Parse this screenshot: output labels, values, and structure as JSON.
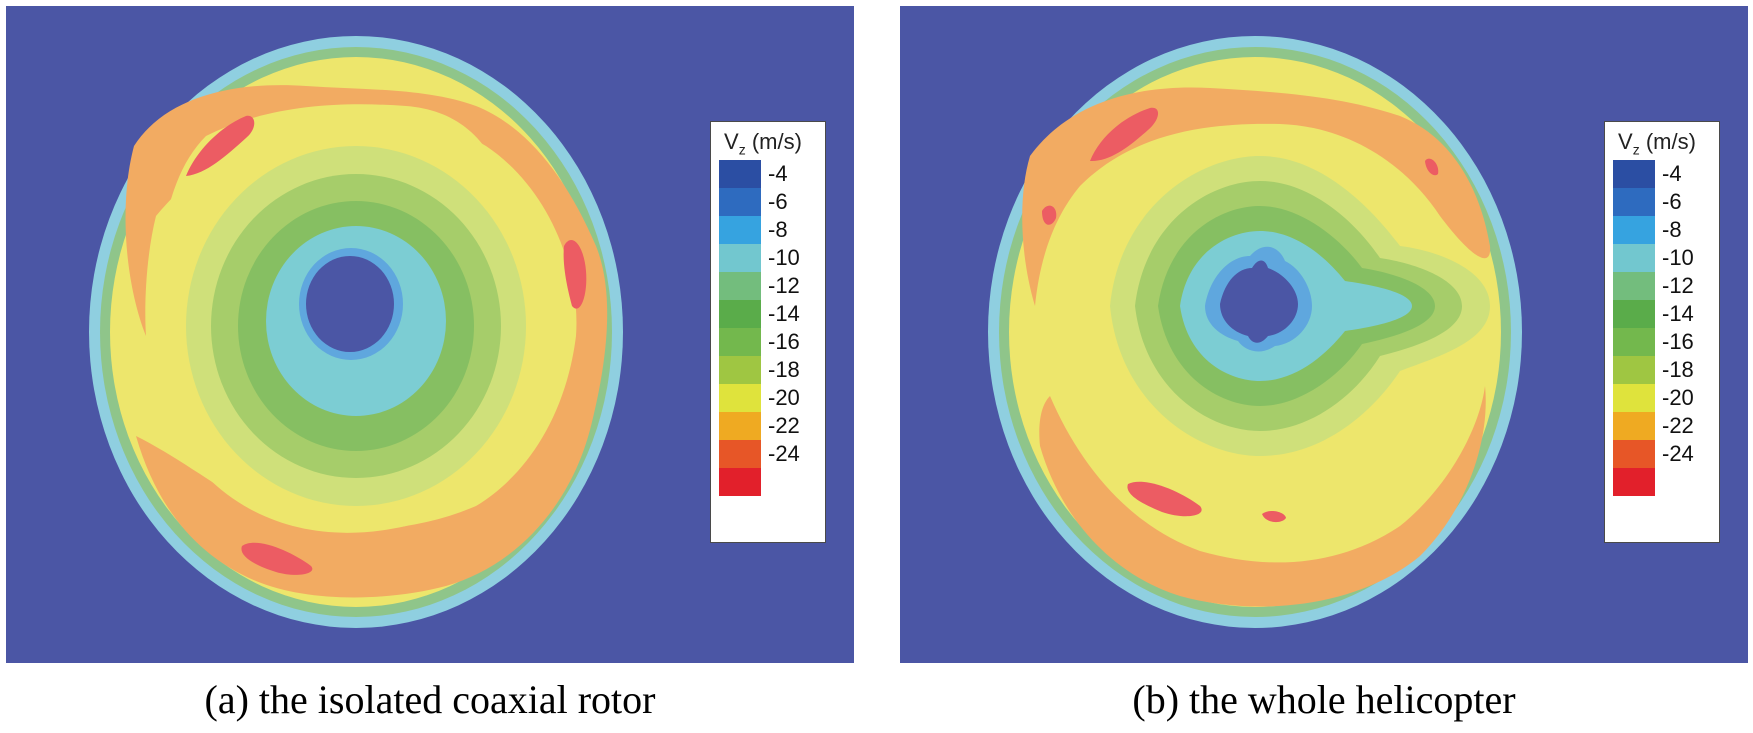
{
  "panels": [
    {
      "id": "a",
      "caption": "(a) the isolated coaxial rotor",
      "legend": {
        "title_main": "V",
        "title_sub": "z",
        "title_unit": "(m/s)",
        "levels": [
          {
            "label": "-4",
            "color": "#2b4ea3"
          },
          {
            "label": "-6",
            "color": "#2e6bbf"
          },
          {
            "label": "-8",
            "color": "#36a3e0"
          },
          {
            "label": "-10",
            "color": "#72c7cf"
          },
          {
            "label": "-12",
            "color": "#73bd7d"
          },
          {
            "label": "-14",
            "color": "#5aac4a"
          },
          {
            "label": "-16",
            "color": "#73b84d"
          },
          {
            "label": "-18",
            "color": "#9fc642"
          },
          {
            "label": "-20",
            "color": "#dfe33c"
          },
          {
            "label": "-22",
            "color": "#efaa22"
          },
          {
            "label": "-24",
            "color": "#e75627"
          },
          {
            "label": "",
            "color": "#e2202b"
          }
        ]
      }
    },
    {
      "id": "b",
      "caption": "(b) the whole helicopter",
      "legend": {
        "title_main": "V",
        "title_sub": "z",
        "title_unit": "(m/s)",
        "levels": [
          {
            "label": "-4",
            "color": "#2b4ea3"
          },
          {
            "label": "-6",
            "color": "#2e6bbf"
          },
          {
            "label": "-8",
            "color": "#36a3e0"
          },
          {
            "label": "-10",
            "color": "#72c7cf"
          },
          {
            "label": "-12",
            "color": "#73bd7d"
          },
          {
            "label": "-14",
            "color": "#5aac4a"
          },
          {
            "label": "-16",
            "color": "#73b84d"
          },
          {
            "label": "-18",
            "color": "#9fc642"
          },
          {
            "label": "-20",
            "color": "#dfe33c"
          },
          {
            "label": "-22",
            "color": "#efaa22"
          },
          {
            "label": "-24",
            "color": "#e75627"
          },
          {
            "label": "",
            "color": "#e2202b"
          }
        ]
      }
    }
  ],
  "colors": {
    "background": "#4b56a5",
    "rim_light": "#8fcfe0",
    "rim_green": "#8fc58a",
    "field_yellow": "#ede66c",
    "field_orange": "#f2ab62",
    "hot_red": "#ec5c63",
    "ring_light_green": "#cfe07a",
    "ring_green": "#a6cd6a",
    "ring_dark_green": "#86bf62",
    "core_cyan": "#7ccdd3",
    "core_blue": "#5fa7de"
  }
}
